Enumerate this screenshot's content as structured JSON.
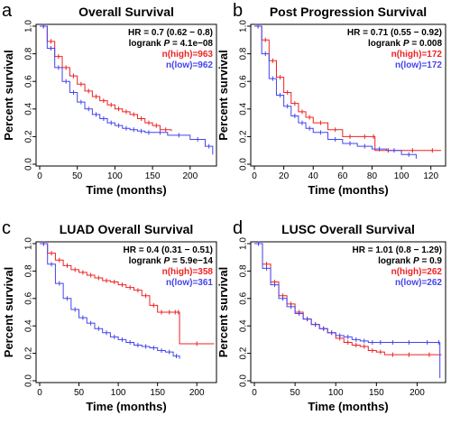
{
  "chart_data": [
    {
      "type": "line",
      "panel": "a",
      "title": "Overall Survival",
      "xlabel": "Time (months)",
      "ylabel": "Percent survival",
      "xlim": [
        0,
        235
      ],
      "ylim": [
        0,
        1
      ],
      "xticks": [
        0,
        50,
        100,
        150,
        200
      ],
      "yticks": [
        0.0,
        0.2,
        0.4,
        0.6,
        0.8,
        1.0
      ],
      "stats": {
        "hr": "HR = 0.7 (0.62 − 0.8)",
        "logrank_prefix": "logrank ",
        "logrank_p": "P",
        "logrank_value": " = 4.1e−08"
      },
      "legend_position": "top-right",
      "series": [
        {
          "name": "n(high)=963",
          "color": "#ee2222",
          "x": [
            0,
            10,
            20,
            30,
            40,
            50,
            60,
            70,
            80,
            90,
            100,
            110,
            120,
            130,
            140,
            150,
            160,
            175
          ],
          "y": [
            1.0,
            0.89,
            0.78,
            0.7,
            0.64,
            0.58,
            0.53,
            0.49,
            0.46,
            0.43,
            0.4,
            0.38,
            0.36,
            0.33,
            0.3,
            0.28,
            0.25,
            0.24
          ]
        },
        {
          "name": "n(low)=962",
          "color": "#4444ee",
          "x": [
            0,
            10,
            20,
            30,
            40,
            50,
            60,
            70,
            80,
            90,
            100,
            110,
            120,
            130,
            140,
            150,
            170,
            200,
            220,
            230
          ],
          "y": [
            1.0,
            0.84,
            0.7,
            0.6,
            0.52,
            0.45,
            0.4,
            0.36,
            0.33,
            0.3,
            0.28,
            0.26,
            0.25,
            0.24,
            0.23,
            0.23,
            0.21,
            0.18,
            0.13,
            0.07
          ]
        }
      ]
    },
    {
      "type": "line",
      "panel": "b",
      "title": "Post Progression Survival",
      "xlabel": "Time (months)",
      "ylabel": "Percent survival",
      "xlim": [
        0,
        130
      ],
      "ylim": [
        0,
        1
      ],
      "xticks": [
        0,
        20,
        40,
        60,
        80,
        100,
        120
      ],
      "yticks": [
        0.0,
        0.2,
        0.4,
        0.6,
        0.8,
        1.0
      ],
      "stats": {
        "hr": "HR = 0.71 (0.55 − 0.92)",
        "logrank_prefix": "logrank ",
        "logrank_p": "P",
        "logrank_value": " = 0.008"
      },
      "legend_position": "top-right",
      "series": [
        {
          "name": "n(high)=172",
          "color": "#ee2222",
          "x": [
            0,
            5,
            10,
            15,
            20,
            25,
            30,
            35,
            40,
            50,
            60,
            70,
            80,
            82,
            100,
            115,
            127
          ],
          "y": [
            1.0,
            0.9,
            0.75,
            0.63,
            0.52,
            0.44,
            0.38,
            0.34,
            0.3,
            0.25,
            0.2,
            0.2,
            0.2,
            0.1,
            0.1,
            0.1,
            0.1
          ]
        },
        {
          "name": "n(low)=172",
          "color": "#4444ee",
          "x": [
            0,
            5,
            10,
            15,
            20,
            25,
            30,
            35,
            40,
            50,
            60,
            70,
            80,
            90,
            100,
            110
          ],
          "y": [
            1.0,
            0.8,
            0.62,
            0.5,
            0.42,
            0.35,
            0.3,
            0.26,
            0.23,
            0.18,
            0.15,
            0.13,
            0.11,
            0.1,
            0.07,
            0.04
          ]
        }
      ]
    },
    {
      "type": "line",
      "panel": "c",
      "title": "LUAD Overall Survival",
      "xlabel": "Time (months)",
      "ylabel": "Percent survival",
      "xlim": [
        0,
        225
      ],
      "ylim": [
        0,
        1
      ],
      "xticks": [
        0,
        50,
        100,
        150,
        200
      ],
      "yticks": [
        0.0,
        0.2,
        0.4,
        0.6,
        0.8,
        1.0
      ],
      "stats": {
        "hr": "HR = 0.4 (0.31 − 0.51)",
        "logrank_prefix": "logrank ",
        "logrank_p": "P",
        "logrank_value": " = 5.9e−14"
      },
      "legend_position": "top-right",
      "series": [
        {
          "name": "n(high)=358",
          "color": "#ee2222",
          "x": [
            0,
            10,
            20,
            30,
            40,
            50,
            60,
            70,
            80,
            90,
            100,
            110,
            120,
            130,
            140,
            150,
            160,
            170,
            175,
            178,
            222
          ],
          "y": [
            1.0,
            0.93,
            0.88,
            0.84,
            0.81,
            0.79,
            0.77,
            0.75,
            0.73,
            0.72,
            0.7,
            0.68,
            0.66,
            0.62,
            0.55,
            0.5,
            0.5,
            0.5,
            0.5,
            0.27,
            0.27
          ]
        },
        {
          "name": "n(low)=361",
          "color": "#4444ee",
          "x": [
            0,
            10,
            20,
            30,
            40,
            50,
            60,
            70,
            80,
            90,
            100,
            110,
            120,
            130,
            140,
            150,
            160,
            170,
            178
          ],
          "y": [
            1.0,
            0.85,
            0.71,
            0.6,
            0.52,
            0.46,
            0.42,
            0.38,
            0.35,
            0.32,
            0.3,
            0.28,
            0.26,
            0.25,
            0.24,
            0.22,
            0.21,
            0.18,
            0.16
          ]
        }
      ]
    },
    {
      "type": "line",
      "panel": "d",
      "title": "LUSC Overall Survival",
      "xlabel": "Time (months)",
      "ylabel": "Percent survival",
      "xlim": [
        0,
        235
      ],
      "ylim": [
        0,
        1
      ],
      "xticks": [
        0,
        50,
        100,
        150,
        200
      ],
      "yticks": [
        0.0,
        0.2,
        0.4,
        0.6,
        0.8,
        1.0
      ],
      "stats": {
        "hr": "HR = 1.01 (0.8 − 1.29)",
        "logrank_prefix": "logrank ",
        "logrank_p": "P",
        "logrank_value": " = 0.9"
      },
      "legend_position": "top-right",
      "series": [
        {
          "name": "n(high)=262",
          "color": "#ee2222",
          "x": [
            0,
            10,
            20,
            30,
            40,
            50,
            60,
            70,
            80,
            90,
            100,
            110,
            120,
            130,
            140,
            150,
            160,
            180,
            200,
            230
          ],
          "y": [
            1.0,
            0.85,
            0.72,
            0.62,
            0.56,
            0.5,
            0.45,
            0.41,
            0.38,
            0.35,
            0.31,
            0.28,
            0.26,
            0.25,
            0.22,
            0.21,
            0.19,
            0.19,
            0.19,
            0.19
          ]
        },
        {
          "name": "n(low)=262",
          "color": "#4444ee",
          "x": [
            0,
            10,
            20,
            30,
            40,
            50,
            60,
            70,
            80,
            90,
            100,
            110,
            120,
            130,
            140,
            150,
            160,
            180,
            200,
            225,
            228
          ],
          "y": [
            1.0,
            0.82,
            0.7,
            0.6,
            0.54,
            0.49,
            0.45,
            0.41,
            0.38,
            0.35,
            0.33,
            0.32,
            0.3,
            0.29,
            0.28,
            0.28,
            0.28,
            0.28,
            0.28,
            0.28,
            0.02
          ]
        }
      ]
    }
  ]
}
